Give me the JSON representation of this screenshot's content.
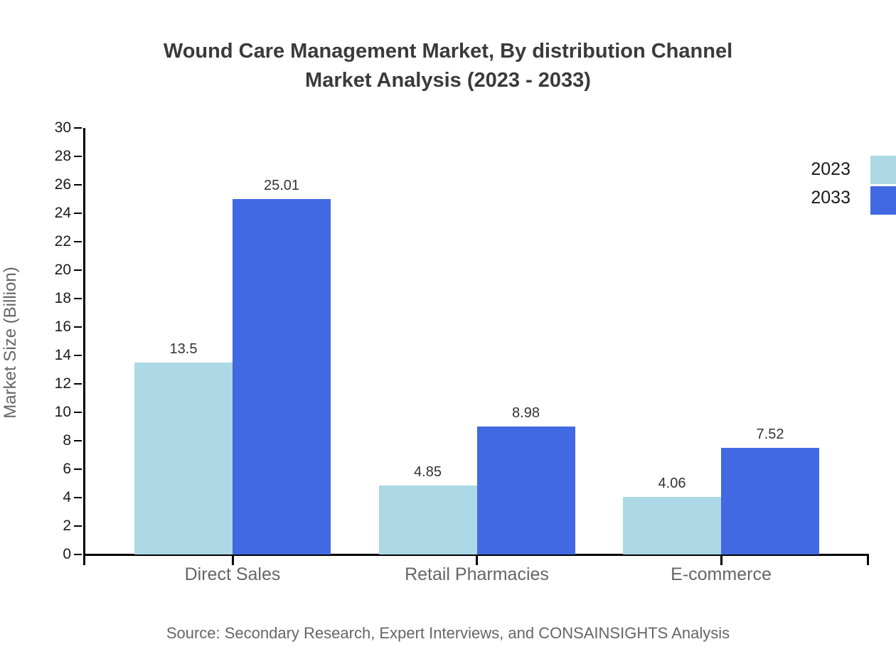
{
  "title": {
    "line1": "Wound Care Management Market, By distribution Channel",
    "line2": "Market Analysis (2023 - 2033)"
  },
  "source": "Source: Secondary Research, Expert Interviews, and CONSAINSIGHTS Analysis",
  "chart_data": {
    "type": "bar",
    "title": "Wound Care Management Market, By distribution Channel Market Analysis (2023 - 2033)",
    "categories": [
      "Direct Sales",
      "Retail Pharmacies",
      "E-commerce"
    ],
    "series": [
      {
        "name": "2023",
        "color": "#ADD8E6",
        "values": [
          13.5,
          4.85,
          4.06
        ]
      },
      {
        "name": "2033",
        "color": "#4169E1",
        "values": [
          25.01,
          8.98,
          7.52
        ]
      }
    ],
    "xlabel": "",
    "ylabel": "Market Size (Billion)",
    "ylim": [
      0,
      30
    ],
    "ytick_step": 2,
    "grid": false,
    "legend_position": "top-right",
    "value_labels_shown": true
  }
}
